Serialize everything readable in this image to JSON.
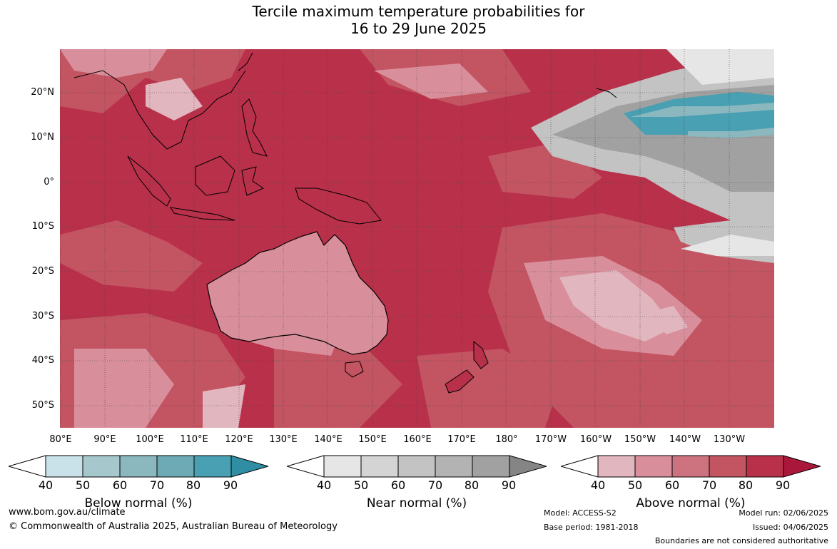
{
  "title_line1": "Tercile maximum temperature probabilities for",
  "title_line2": "16 to 29 June 2025",
  "lat_labels": [
    "20°N",
    "10°N",
    "0°",
    "10°S",
    "20°S",
    "30°S",
    "40°S",
    "50°S"
  ],
  "lon_labels": [
    "80°E",
    "90°E",
    "100°E",
    "110°E",
    "120°E",
    "130°E",
    "140°E",
    "150°E",
    "160°E",
    "170°E",
    "180°",
    "170°W",
    "160°W",
    "150°W",
    "140°W",
    "130°W"
  ],
  "legend": {
    "below": {
      "label": "Below normal (%)",
      "colors": [
        "#ffffff",
        "#c9e1e8",
        "#a6c8cd",
        "#8bb7bf",
        "#6eaab6",
        "#48a0b2",
        "#2f8ea3"
      ]
    },
    "near": {
      "label": "Near normal (%)",
      "colors": [
        "#ffffff",
        "#e6e6e6",
        "#d4d4d4",
        "#c3c3c3",
        "#b3b3b3",
        "#a1a1a1",
        "#858585"
      ]
    },
    "above": {
      "label": "Above normal (%)",
      "colors": [
        "#ffffff",
        "#e2b6be",
        "#d98f9b",
        "#cd7380",
        "#c35462",
        "#b8304a",
        "#a9183a"
      ]
    },
    "ticks": [
      "40",
      "50",
      "60",
      "70",
      "80",
      "90"
    ]
  },
  "footer": {
    "url": "www.bom.gov.au/climate",
    "copyright": "© Commonwealth of Australia 2025, Australian Bureau of Meteorology",
    "model": "Model: ACCESS-S2",
    "base_period": "Base period: 1981-2018",
    "model_run": "Model run: 02/06/2025",
    "issued": "Issued: 04/06/2025",
    "disclaimer": "Boundaries are not considered authoritative"
  }
}
